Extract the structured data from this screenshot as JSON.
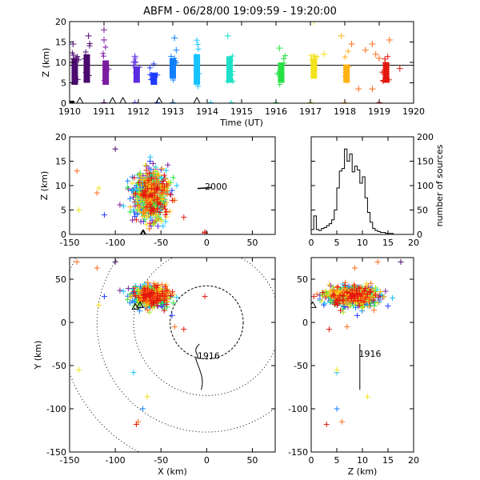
{
  "title": "ABFM - 06/28/00 19:09:59 - 19:20:00",
  "colors": {
    "sequence": [
      "#000000",
      "#4b0a6e",
      "#7a1da0",
      "#5a2be0",
      "#1f3bff",
      "#1180ff",
      "#17c3ff",
      "#1de0c8",
      "#28e043",
      "#9be81f",
      "#f2e21c",
      "#ffb312",
      "#ff6b18",
      "#e3170f"
    ],
    "station": "#000000",
    "axes": "#000000"
  },
  "chart_data": [
    {
      "id": "time-height",
      "type": "scatter",
      "xlabel": "Time (UT)",
      "ylabel": "Z (km)",
      "xlim": [
        1910,
        1920
      ],
      "ylim": [
        0,
        20
      ],
      "xticks": [
        "1910",
        "1911",
        "1912",
        "1913",
        "1914",
        "1915",
        "1916",
        "1917",
        "1918",
        "1919",
        "1920"
      ],
      "yticks": [
        "0",
        "5",
        "10",
        "15",
        "20"
      ],
      "reference_line_z": 9.3,
      "columns": [
        {
          "x": 1910.15,
          "zlo": 4.5,
          "zhi": 11.0,
          "color": 1
        },
        {
          "x": 1910.5,
          "zlo": 5.0,
          "zhi": 12.0,
          "color": 1
        },
        {
          "x": 1911.05,
          "zlo": 4.5,
          "zhi": 10.5,
          "color": 2
        },
        {
          "x": 1911.95,
          "zlo": 5.0,
          "zhi": 9.0,
          "color": 3
        },
        {
          "x": 1912.45,
          "zlo": 4.5,
          "zhi": 7.5,
          "color": 4
        },
        {
          "x": 1913.0,
          "zlo": 6.0,
          "zhi": 11.0,
          "color": 5
        },
        {
          "x": 1913.7,
          "zlo": 4.5,
          "zhi": 12.0,
          "color": 6
        },
        {
          "x": 1914.65,
          "zlo": 5.0,
          "zhi": 11.5,
          "color": 7
        },
        {
          "x": 1916.15,
          "zlo": 5.0,
          "zhi": 10.0,
          "color": 8
        },
        {
          "x": 1917.1,
          "zlo": 6.0,
          "zhi": 11.0,
          "color": 10
        },
        {
          "x": 1918.05,
          "zlo": 5.0,
          "zhi": 9.5,
          "color": 11
        },
        {
          "x": 1919.2,
          "zlo": 5.0,
          "zhi": 10.0,
          "color": 13
        }
      ],
      "outliers": [
        {
          "x": 1910.1,
          "z": 14.5,
          "color": 1
        },
        {
          "x": 1910.55,
          "z": 16.5,
          "color": 1
        },
        {
          "x": 1911.0,
          "z": 18.0,
          "color": 2
        },
        {
          "x": 1911.0,
          "z": 15.5,
          "color": 2
        },
        {
          "x": 1911.9,
          "z": 11.5,
          "color": 3
        },
        {
          "x": 1913.05,
          "z": 16.0,
          "color": 5
        },
        {
          "x": 1913.1,
          "z": 13.0,
          "color": 5
        },
        {
          "x": 1914.6,
          "z": 16.5,
          "color": 7
        },
        {
          "x": 1916.1,
          "z": 13.5,
          "color": 8
        },
        {
          "x": 1917.1,
          "z": 20.0,
          "color": 10
        },
        {
          "x": 1917.4,
          "z": 12.0,
          "color": 10
        },
        {
          "x": 1917.9,
          "z": 16.5,
          "color": 11
        },
        {
          "x": 1918.2,
          "z": 14.5,
          "color": 12
        },
        {
          "x": 1918.6,
          "z": 13.0,
          "color": 12
        },
        {
          "x": 1918.8,
          "z": 14.5,
          "color": 12
        },
        {
          "x": 1918.9,
          "z": 12.0,
          "color": 12
        },
        {
          "x": 1919.3,
          "z": 15.5,
          "color": 12
        },
        {
          "x": 1919.0,
          "z": 11.0,
          "color": 12
        },
        {
          "x": 1918.4,
          "z": 3.5,
          "color": 12
        },
        {
          "x": 1918.8,
          "z": 3.5,
          "color": 12
        },
        {
          "x": 1919.6,
          "z": 8.5,
          "color": 13
        }
      ],
      "ground_points": [
        {
          "x": 1910.0,
          "color": 0
        },
        {
          "x": 1911.0,
          "color": 2
        },
        {
          "x": 1911.9,
          "color": 3
        },
        {
          "x": 1912.55,
          "color": 4
        },
        {
          "x": 1913.0,
          "color": 5
        },
        {
          "x": 1914.1,
          "color": 6
        },
        {
          "x": 1914.7,
          "color": 7
        },
        {
          "x": 1916.0,
          "color": 8
        },
        {
          "x": 1917.0,
          "color": 9
        },
        {
          "x": 1918.0,
          "color": 11
        },
        {
          "x": 1919.0,
          "color": 13
        }
      ],
      "triangles_x": [
        1910.3,
        1911.25,
        1911.55,
        1912.6,
        1913.7
      ]
    },
    {
      "id": "x-z",
      "type": "scatter",
      "xlim": [
        -150,
        75
      ],
      "ylim": [
        0,
        20
      ],
      "ylabel": "Z (km)",
      "xticks": [
        "-150",
        "-100",
        "-50",
        "0",
        "50"
      ],
      "yticks": [
        "0",
        "5",
        "10",
        "15",
        "20"
      ],
      "cluster": {
        "x_center": -65,
        "z_center": 8,
        "x_spread": 12,
        "z_spread": 3
      },
      "annotation": "2000",
      "triangles_x": [
        -70,
        -69
      ]
    },
    {
      "id": "histogram",
      "type": "bar",
      "xlim": [
        0,
        20
      ],
      "ylim": [
        0,
        200
      ],
      "ylabel": "number of sources",
      "xticks": [
        "0",
        "5",
        "10",
        "15",
        "20"
      ],
      "yticks": [
        "0",
        "50",
        "100",
        "150",
        "200"
      ],
      "bin_width": 0.5,
      "values": [
        10,
        38,
        10,
        8,
        12,
        14,
        18,
        22,
        30,
        50,
        95,
        130,
        135,
        175,
        150,
        165,
        128,
        140,
        132,
        105,
        118,
        75,
        45,
        25,
        12,
        8,
        6,
        4,
        4,
        2,
        2,
        2,
        0,
        0,
        0,
        0,
        0,
        0,
        0,
        0
      ]
    },
    {
      "id": "x-y",
      "type": "scatter",
      "xlabel": "X (km)",
      "ylabel": "Y (km)",
      "xlim": [
        -150,
        75
      ],
      "ylim": [
        -150,
        75
      ],
      "xticks": [
        "-150",
        "-100",
        "-50",
        "0",
        "50"
      ],
      "yticks": [
        "-150",
        "-100",
        "-50",
        "0",
        "50"
      ],
      "range_rings_km": [
        40,
        80,
        120,
        160
      ],
      "cluster": {
        "x_center": -65,
        "y_center": 30,
        "x_spread": 12,
        "y_spread": 6
      },
      "annotation": "1916"
    },
    {
      "id": "z-y",
      "type": "scatter",
      "xlabel": "Z (km)",
      "xlim": [
        0,
        20
      ],
      "ylim": [
        -150,
        75
      ],
      "xticks": [
        "0",
        "5",
        "10",
        "15",
        "20"
      ],
      "yticks": [
        "-150",
        "-100",
        "-50",
        "0",
        "50"
      ],
      "cluster": {
        "z_center": 8,
        "y_center": 30,
        "z_spread": 3,
        "y_spread": 6
      },
      "annotation": "1916"
    }
  ]
}
